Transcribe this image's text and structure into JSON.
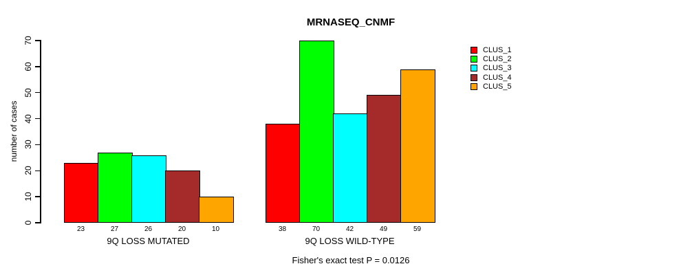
{
  "title": "MRNASEQ_CNMF",
  "caption": "Fisher's exact test P = 0.0126",
  "chart_data": {
    "type": "bar",
    "title": "MRNASEQ_CNMF",
    "xlabel": "",
    "ylabel": "number of cases",
    "ylim": [
      0,
      70
    ],
    "yticks": [
      0,
      10,
      20,
      30,
      40,
      50,
      60,
      70
    ],
    "grid": false,
    "legend_position": "right",
    "categories": [
      "9Q LOSS MUTATED",
      "9Q LOSS WILD-TYPE"
    ],
    "groups": [
      {
        "label": "9Q LOSS MUTATED",
        "values": [
          23,
          27,
          26,
          20,
          10
        ]
      },
      {
        "label": "9Q LOSS WILD-TYPE",
        "values": [
          38,
          70,
          42,
          49,
          59
        ]
      }
    ],
    "series": [
      {
        "name": "CLUS_1",
        "color": "#FF0000",
        "values": [
          23,
          38
        ]
      },
      {
        "name": "CLUS_2",
        "color": "#00FF00",
        "values": [
          27,
          70
        ]
      },
      {
        "name": "CLUS_3",
        "color": "#00FFFF",
        "values": [
          26,
          42
        ]
      },
      {
        "name": "CLUS_4",
        "color": "#A52A2A",
        "values": [
          20,
          49
        ]
      },
      {
        "name": "CLUS_5",
        "color": "#FFA500",
        "values": [
          10,
          59
        ]
      }
    ],
    "bar_value_labels_shown": true,
    "annotation": "Fisher's exact test P = 0.0126"
  }
}
